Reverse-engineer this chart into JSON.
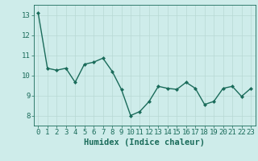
{
  "x": [
    0,
    1,
    2,
    3,
    4,
    5,
    6,
    7,
    8,
    9,
    10,
    11,
    12,
    13,
    14,
    15,
    16,
    17,
    18,
    19,
    20,
    21,
    22,
    23
  ],
  "y": [
    13.1,
    10.35,
    10.25,
    10.35,
    9.65,
    10.55,
    10.65,
    10.85,
    10.2,
    9.3,
    8.0,
    8.2,
    8.7,
    9.45,
    9.35,
    9.3,
    9.65,
    9.35,
    8.55,
    8.7,
    9.35,
    9.45,
    8.95,
    9.35
  ],
  "line_color": "#1a6b5a",
  "marker": "D",
  "marker_size": 2.0,
  "linewidth": 1.0,
  "xlabel": "Humidex (Indice chaleur)",
  "ylim": [
    7.5,
    13.5
  ],
  "xlim": [
    -0.5,
    23.5
  ],
  "yticks": [
    8,
    9,
    10,
    11,
    12,
    13
  ],
  "xticks": [
    0,
    1,
    2,
    3,
    4,
    5,
    6,
    7,
    8,
    9,
    10,
    11,
    12,
    13,
    14,
    15,
    16,
    17,
    18,
    19,
    20,
    21,
    22,
    23
  ],
  "bg_color": "#ceecea",
  "grid_color": "#b8d8d4",
  "axis_color": "#1a6b5a",
  "tick_color": "#1a6b5a",
  "label_color": "#1a6b5a",
  "xlabel_fontsize": 7.5,
  "tick_fontsize": 6.5
}
